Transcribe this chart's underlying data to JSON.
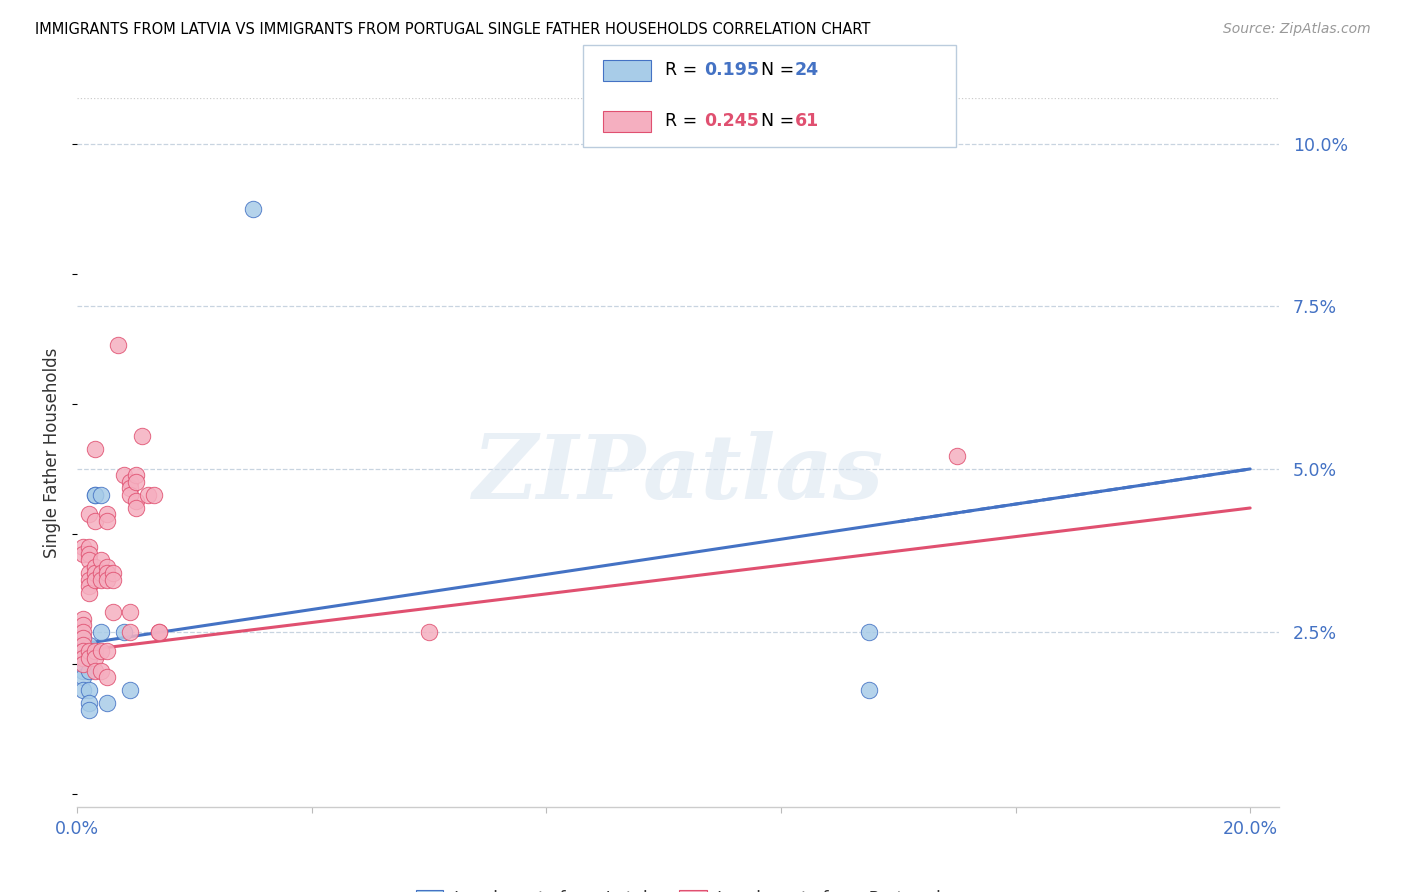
{
  "title": "IMMIGRANTS FROM LATVIA VS IMMIGRANTS FROM PORTUGAL SINGLE FATHER HOUSEHOLDS CORRELATION CHART",
  "source": "Source: ZipAtlas.com",
  "ylabel_label": "Single Father Households",
  "xlim": [
    0.0,
    0.205
  ],
  "ylim": [
    -0.002,
    0.107
  ],
  "latvia_color": "#a8cce8",
  "portugal_color": "#f5afc0",
  "trend_latvia_color": "#4472c4",
  "trend_portugal_color": "#e05070",
  "R_latvia": 0.195,
  "N_latvia": 24,
  "R_portugal": 0.245,
  "N_portugal": 61,
  "watermark": "ZIPatlas",
  "trend_latvia": [
    0.0,
    0.023,
    0.2,
    0.05
  ],
  "trend_portugal": [
    0.0,
    0.022,
    0.2,
    0.044
  ],
  "latvia_points": [
    [
      0.001,
      0.024
    ],
    [
      0.001,
      0.022
    ],
    [
      0.001,
      0.021
    ],
    [
      0.001,
      0.02
    ],
    [
      0.001,
      0.019
    ],
    [
      0.001,
      0.018
    ],
    [
      0.001,
      0.016
    ],
    [
      0.002,
      0.023
    ],
    [
      0.002,
      0.022
    ],
    [
      0.002,
      0.021
    ],
    [
      0.002,
      0.019
    ],
    [
      0.002,
      0.016
    ],
    [
      0.002,
      0.014
    ],
    [
      0.002,
      0.013
    ],
    [
      0.003,
      0.046
    ],
    [
      0.003,
      0.046
    ],
    [
      0.004,
      0.046
    ],
    [
      0.004,
      0.025
    ],
    [
      0.005,
      0.014
    ],
    [
      0.008,
      0.025
    ],
    [
      0.009,
      0.016
    ],
    [
      0.03,
      0.09
    ],
    [
      0.135,
      0.025
    ],
    [
      0.135,
      0.016
    ]
  ],
  "portugal_points": [
    [
      0.001,
      0.038
    ],
    [
      0.001,
      0.037
    ],
    [
      0.001,
      0.027
    ],
    [
      0.001,
      0.026
    ],
    [
      0.001,
      0.025
    ],
    [
      0.001,
      0.024
    ],
    [
      0.001,
      0.023
    ],
    [
      0.001,
      0.022
    ],
    [
      0.001,
      0.021
    ],
    [
      0.001,
      0.02
    ],
    [
      0.002,
      0.043
    ],
    [
      0.002,
      0.038
    ],
    [
      0.002,
      0.037
    ],
    [
      0.002,
      0.036
    ],
    [
      0.002,
      0.034
    ],
    [
      0.002,
      0.033
    ],
    [
      0.002,
      0.032
    ],
    [
      0.002,
      0.031
    ],
    [
      0.002,
      0.022
    ],
    [
      0.002,
      0.021
    ],
    [
      0.003,
      0.053
    ],
    [
      0.003,
      0.042
    ],
    [
      0.003,
      0.035
    ],
    [
      0.003,
      0.034
    ],
    [
      0.003,
      0.033
    ],
    [
      0.003,
      0.022
    ],
    [
      0.003,
      0.021
    ],
    [
      0.003,
      0.019
    ],
    [
      0.004,
      0.036
    ],
    [
      0.004,
      0.034
    ],
    [
      0.004,
      0.033
    ],
    [
      0.004,
      0.022
    ],
    [
      0.004,
      0.019
    ],
    [
      0.005,
      0.043
    ],
    [
      0.005,
      0.042
    ],
    [
      0.005,
      0.035
    ],
    [
      0.005,
      0.034
    ],
    [
      0.005,
      0.033
    ],
    [
      0.005,
      0.022
    ],
    [
      0.005,
      0.018
    ],
    [
      0.006,
      0.034
    ],
    [
      0.006,
      0.033
    ],
    [
      0.006,
      0.028
    ],
    [
      0.007,
      0.069
    ],
    [
      0.008,
      0.049
    ],
    [
      0.009,
      0.048
    ],
    [
      0.009,
      0.047
    ],
    [
      0.009,
      0.046
    ],
    [
      0.009,
      0.028
    ],
    [
      0.009,
      0.025
    ],
    [
      0.01,
      0.049
    ],
    [
      0.01,
      0.048
    ],
    [
      0.01,
      0.045
    ],
    [
      0.01,
      0.044
    ],
    [
      0.011,
      0.055
    ],
    [
      0.012,
      0.046
    ],
    [
      0.013,
      0.046
    ],
    [
      0.014,
      0.025
    ],
    [
      0.014,
      0.025
    ],
    [
      0.06,
      0.025
    ],
    [
      0.15,
      0.052
    ]
  ]
}
